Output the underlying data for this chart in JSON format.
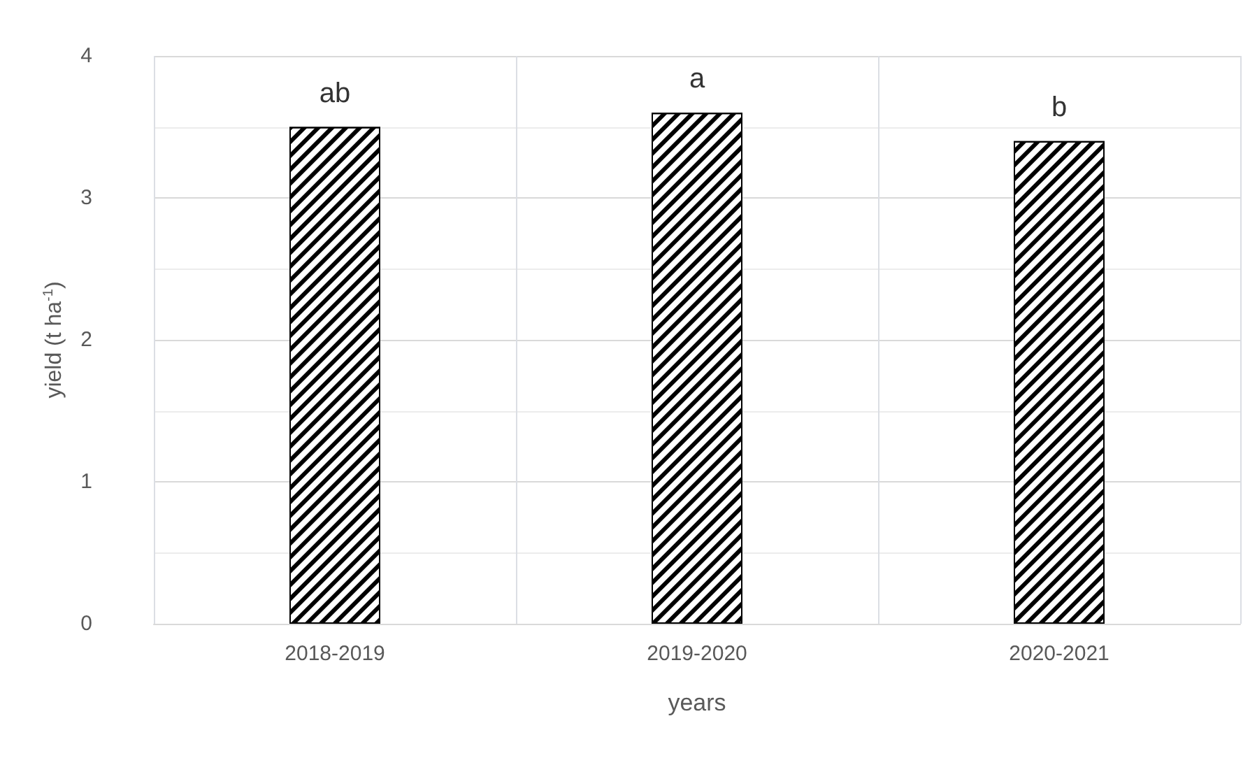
{
  "chart_data": {
    "type": "bar",
    "xlabel": "years",
    "ylabel": "yield (t ha$^{-1}$)",
    "categories": [
      "2018-2019",
      "2019-2020",
      "2020-2021"
    ],
    "values": [
      3.5,
      3.6,
      3.4
    ],
    "color": "#000000",
    "ylim": [
      0,
      4
    ],
    "yticks": [
      0,
      1,
      2,
      3,
      4
    ],
    "grid": true,
    "annotations": [
      {
        "text": "ab",
        "x": "2018-2019",
        "y": 3.5
      },
      {
        "text": "a",
        "x": "2019-2020",
        "y": 3.6
      },
      {
        "text": "b",
        "x": "2020-2021",
        "y": 3.4
      }
    ]
  }
}
